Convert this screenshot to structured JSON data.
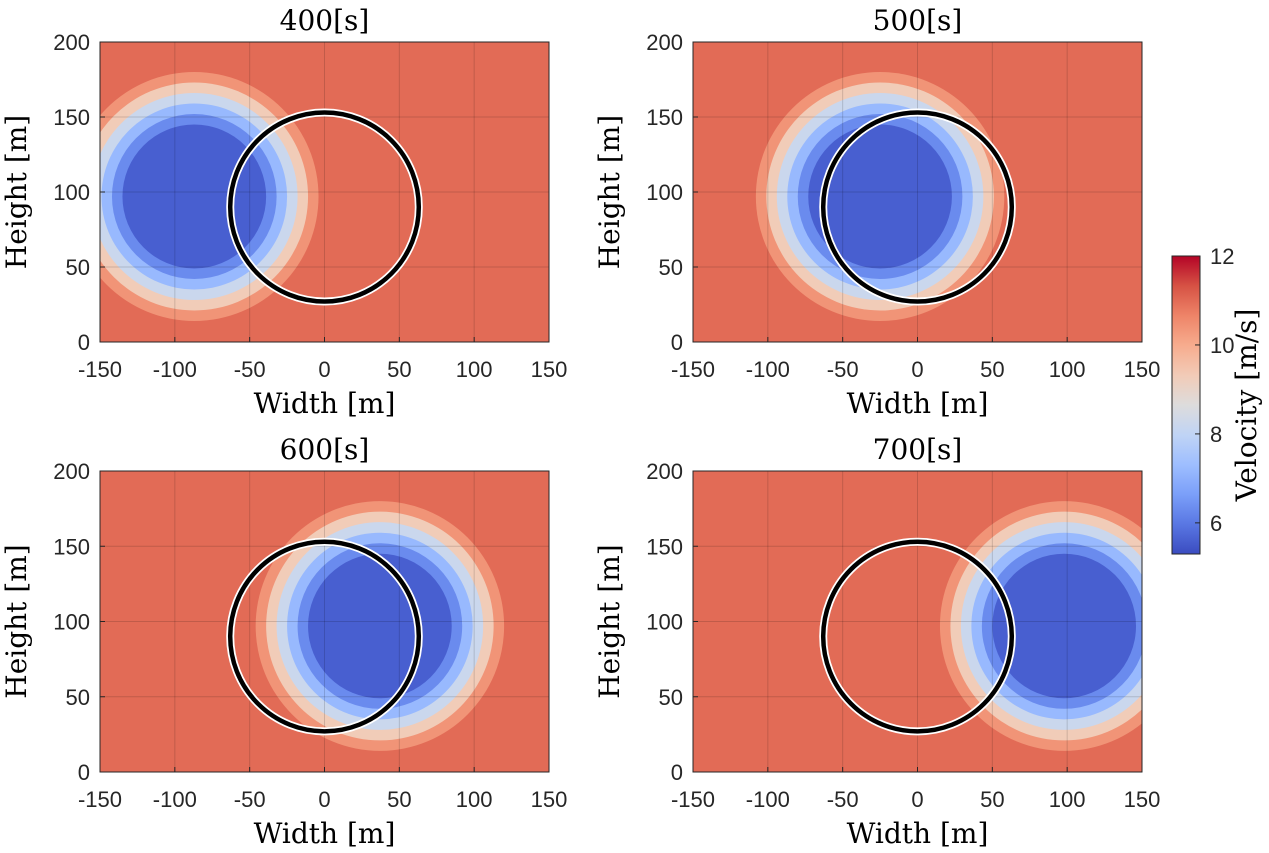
{
  "chart_data": {
    "type": "heatmap",
    "figure_kind": "filled-contour small multiples",
    "colormap": {
      "name": "coolwarm",
      "label": "Velocity [m/s]",
      "range": [
        5.3,
        12
      ],
      "ticks": [
        6,
        8,
        10,
        12
      ],
      "stops": [
        "#3b4cc0",
        "#5977e3",
        "#7b9ff9",
        "#9ebeff",
        "#c0d4f5",
        "#dddcdc",
        "#f2cbb7",
        "#f7ac8e",
        "#ee8468",
        "#d65244",
        "#b40426"
      ]
    },
    "background_velocity": 11.0,
    "wake_deficit_profile": {
      "radius_m": [
        0,
        48,
        55,
        62,
        69,
        76,
        83
      ],
      "velocity": [
        5.6,
        5.6,
        6.3,
        7.2,
        8.2,
        9.3,
        10.4
      ]
    },
    "rotor": {
      "center": [
        0,
        90
      ],
      "radius_m": 63,
      "style": "black ring"
    },
    "panels": [
      {
        "title": "400[s]",
        "xlabel": "Width [m]",
        "ylabel": "Height [m]",
        "wake_center": [
          -87,
          97
        ],
        "xlim": [
          -150,
          150
        ],
        "ylim": [
          0,
          200
        ],
        "xticks": [
          -150,
          -100,
          -50,
          0,
          50,
          100,
          150
        ],
        "yticks": [
          0,
          50,
          100,
          150,
          200
        ],
        "grid": true
      },
      {
        "title": "500[s]",
        "xlabel": "Width [m]",
        "ylabel": "Height [m]",
        "wake_center": [
          -25,
          97
        ],
        "xlim": [
          -150,
          150
        ],
        "ylim": [
          0,
          200
        ],
        "xticks": [
          -150,
          -100,
          -50,
          0,
          50,
          100,
          150
        ],
        "yticks": [
          0,
          50,
          100,
          150,
          200
        ],
        "grid": true
      },
      {
        "title": "600[s]",
        "xlabel": "Width [m]",
        "ylabel": "Height [m]",
        "wake_center": [
          37,
          97
        ],
        "xlim": [
          -150,
          150
        ],
        "ylim": [
          0,
          200
        ],
        "xticks": [
          -150,
          -100,
          -50,
          0,
          50,
          100,
          150
        ],
        "yticks": [
          0,
          50,
          100,
          150,
          200
        ],
        "grid": true
      },
      {
        "title": "700[s]",
        "xlabel": "Width [m]",
        "ylabel": "Height [m]",
        "wake_center": [
          98,
          97
        ],
        "xlim": [
          -150,
          150
        ],
        "ylim": [
          0,
          200
        ],
        "xticks": [
          -150,
          -100,
          -50,
          0,
          50,
          100,
          150
        ],
        "yticks": [
          0,
          50,
          100,
          150,
          200
        ],
        "grid": true
      }
    ]
  }
}
